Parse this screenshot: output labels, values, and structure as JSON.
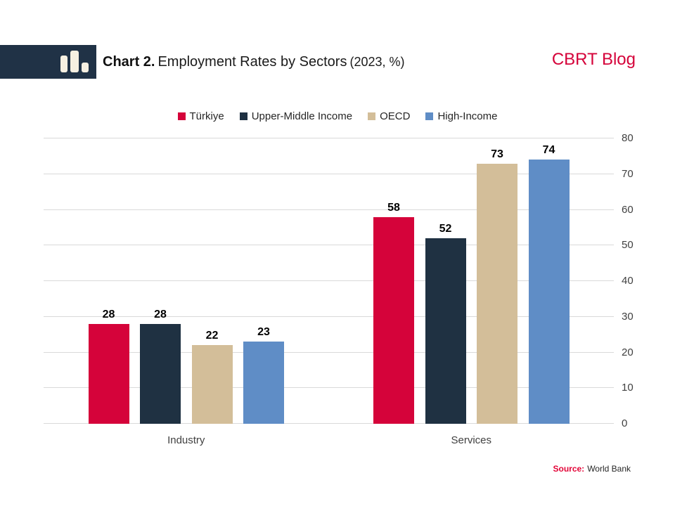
{
  "header": {
    "title_prefix": "Chart 2.",
    "title_main": "Employment Rates by Sectors",
    "title_suffix": "(2023, %)",
    "blog_label": "CBRT Blog"
  },
  "source": {
    "label": "Source:",
    "text": "World Bank"
  },
  "colors": {
    "accent_red": "#D5033A",
    "dark_navy": "#1F3142",
    "tan": "#D3BE99",
    "blue": "#5F8DC6",
    "gridline": "#D9D9D9",
    "axis_text": "#404040",
    "logo_background": "#203246",
    "logo_glyph": "#F6F0E1"
  },
  "chart_data": {
    "type": "bar",
    "title": "Chart 2. Employment Rates by Sectors (2023, %)",
    "categories": [
      "Industry",
      "Services"
    ],
    "series": [
      {
        "name": "Türkiye",
        "color": "#D5033A",
        "values": [
          28,
          58
        ]
      },
      {
        "name": "Upper-Middle Income",
        "color": "#1F3142",
        "values": [
          28,
          52
        ]
      },
      {
        "name": "OECD",
        "color": "#D3BE99",
        "values": [
          22,
          73
        ]
      },
      {
        "name": "High-Income",
        "color": "#5F8DC6",
        "values": [
          23,
          74
        ]
      }
    ],
    "xlabel": "",
    "ylabel": "",
    "ylim": [
      0,
      80
    ],
    "yticks": [
      0,
      10,
      20,
      30,
      40,
      50,
      60,
      70,
      80
    ],
    "yaxis_side": "right",
    "grid": true,
    "legend_position": "top",
    "value_labels": true
  }
}
